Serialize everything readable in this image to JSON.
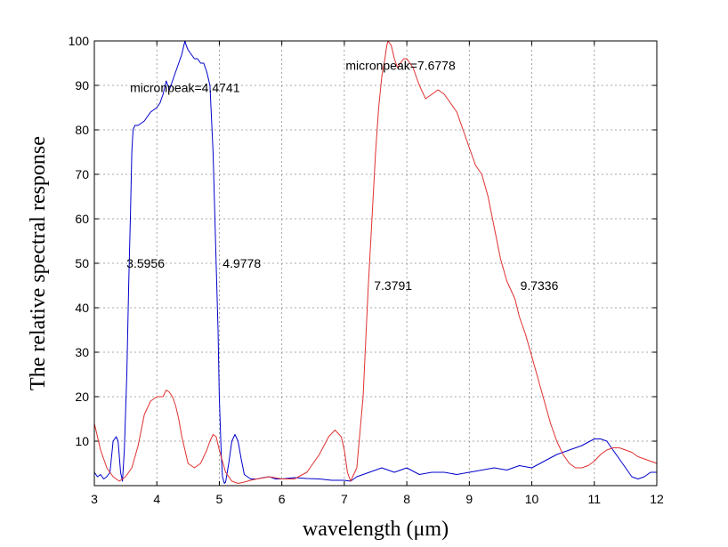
{
  "chart_data": {
    "type": "line",
    "xlabel": "wavelength (μm)",
    "ylabel": "The relative spectral response",
    "xlim": [
      3,
      12
    ],
    "ylim": [
      0,
      100
    ],
    "x_ticks": [
      3,
      4,
      5,
      6,
      7,
      8,
      9,
      10,
      11,
      12
    ],
    "y_ticks": [
      10,
      20,
      30,
      40,
      50,
      60,
      70,
      80,
      90,
      100
    ],
    "grid": true,
    "series": [
      {
        "color": "#0000cc",
        "x": [
          3.0,
          3.05,
          3.1,
          3.15,
          3.2,
          3.25,
          3.3,
          3.35,
          3.38,
          3.42,
          3.45,
          3.48,
          3.52,
          3.55,
          3.58,
          3.6,
          3.62,
          3.65,
          3.7,
          3.8,
          3.9,
          4.0,
          4.05,
          4.1,
          4.15,
          4.2,
          4.25,
          4.3,
          4.35,
          4.4,
          4.45,
          4.47,
          4.5,
          4.55,
          4.6,
          4.65,
          4.7,
          4.75,
          4.8,
          4.85,
          4.9,
          4.93,
          4.95,
          4.98,
          5.0,
          5.03,
          5.05,
          5.08,
          5.1,
          5.15,
          5.2,
          5.25,
          5.3,
          5.35,
          5.4,
          5.5,
          5.6,
          5.7,
          5.8,
          5.9,
          6.0,
          6.2,
          6.4,
          6.6,
          6.8,
          7.0,
          7.1,
          7.2,
          7.4,
          7.6,
          7.8,
          8.0,
          8.2,
          8.4,
          8.6,
          8.8,
          9.0,
          9.2,
          9.4,
          9.6,
          9.8,
          10.0,
          10.2,
          10.4,
          10.6,
          10.8,
          11.0,
          11.1,
          11.2,
          11.3,
          11.4,
          11.5,
          11.6,
          11.7,
          11.8,
          11.9,
          12.0
        ],
        "values": [
          3,
          2,
          2.5,
          1.5,
          2,
          3,
          10,
          11,
          10,
          3,
          1,
          8,
          25,
          45,
          62,
          75,
          80,
          81,
          81,
          82,
          84,
          85,
          86,
          88,
          91,
          89,
          91,
          93,
          95,
          97,
          100,
          99,
          98,
          97,
          96,
          96,
          95,
          95,
          93,
          90,
          75,
          60,
          49.8,
          35,
          20,
          7,
          2,
          0.5,
          0.8,
          5,
          10,
          11.5,
          10,
          6,
          2.5,
          1.5,
          1.5,
          1.8,
          2,
          1.5,
          1.5,
          1.8,
          1.6,
          1.5,
          1.2,
          1.2,
          1.0,
          2,
          3,
          4,
          3,
          4,
          2.5,
          3,
          3,
          2.5,
          3,
          3.5,
          4,
          3.5,
          4.5,
          4,
          5.5,
          7,
          8,
          9,
          10.5,
          10.5,
          10,
          8,
          6,
          4,
          2,
          1.5,
          2,
          3,
          3
        ]
      },
      {
        "color": "#e03030",
        "x": [
          3.0,
          3.1,
          3.2,
          3.3,
          3.4,
          3.5,
          3.6,
          3.7,
          3.8,
          3.9,
          4.0,
          4.1,
          4.15,
          4.2,
          4.25,
          4.3,
          4.35,
          4.4,
          4.5,
          4.6,
          4.7,
          4.8,
          4.85,
          4.9,
          4.95,
          5.0,
          5.1,
          5.2,
          5.3,
          5.4,
          5.5,
          5.6,
          5.8,
          6.0,
          6.2,
          6.4,
          6.6,
          6.75,
          6.85,
          6.95,
          7.0,
          7.05,
          7.1,
          7.2,
          7.3,
          7.38,
          7.45,
          7.5,
          7.55,
          7.6,
          7.65,
          7.68,
          7.7,
          7.75,
          7.8,
          7.85,
          7.9,
          7.95,
          8.0,
          8.05,
          8.1,
          8.15,
          8.2,
          8.3,
          8.4,
          8.5,
          8.6,
          8.7,
          8.8,
          8.9,
          9.0,
          9.1,
          9.2,
          9.3,
          9.4,
          9.5,
          9.6,
          9.73,
          9.8,
          9.9,
          10.0,
          10.1,
          10.2,
          10.3,
          10.4,
          10.5,
          10.6,
          10.7,
          10.8,
          10.9,
          11.0,
          11.1,
          11.2,
          11.3,
          11.4,
          11.5,
          11.6,
          11.7,
          11.8,
          11.9,
          12.0
        ],
        "values": [
          14,
          8,
          4,
          2,
          1,
          2,
          4,
          9,
          16,
          19,
          20,
          20,
          21.5,
          21,
          20,
          18,
          15,
          11,
          5,
          4,
          5,
          8,
          10,
          11.5,
          11,
          8,
          3,
          1,
          0.5,
          0.8,
          1.2,
          1.5,
          2,
          1.5,
          1.5,
          3,
          7,
          11,
          12.5,
          11,
          8,
          3,
          1,
          4,
          20,
          44,
          62,
          75,
          85,
          92,
          96,
          99,
          100,
          99,
          96,
          94,
          95,
          96,
          96,
          95,
          94,
          92,
          90,
          87,
          88,
          89,
          88,
          86,
          84,
          80,
          76,
          72,
          70,
          65,
          58,
          51,
          46,
          42,
          38,
          34,
          29,
          24,
          19,
          14,
          10,
          7,
          5,
          4,
          4,
          4.5,
          5.5,
          7,
          8,
          8.5,
          8.5,
          8,
          7.5,
          6.5,
          6,
          5.5,
          5
        ]
      }
    ],
    "annotations": [
      {
        "text": "micronpeak=4.4741",
        "x": 4.45,
        "y": 89.5
      },
      {
        "text": "micronpeak=7.6778",
        "x": 7.9,
        "y": 94.5
      },
      {
        "text": "3.5956",
        "x": 3.82,
        "y": 50
      },
      {
        "text": "4.9778",
        "x": 5.36,
        "y": 50
      },
      {
        "text": "7.3791",
        "x": 7.78,
        "y": 45
      },
      {
        "text": "9.7336",
        "x": 10.12,
        "y": 45
      }
    ]
  }
}
